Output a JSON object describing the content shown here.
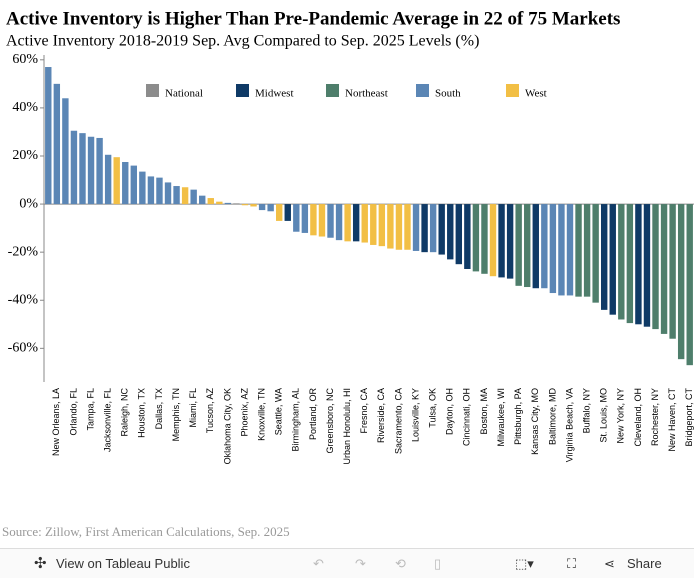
{
  "chart_data": {
    "type": "bar",
    "title": "Active Inventory is Higher Than Pre-Pandemic Average in 22 of 75 Markets",
    "subtitle": "Active Inventory 2018-2019 Sep. Avg Compared to Sep. 2025 Levels (%)",
    "source": "Source: Zillow, First American Calculations, Sep. 2025",
    "categories": [
      null,
      "New Orleans, LA",
      null,
      "Orlando, FL",
      null,
      "Tampa, FL",
      null,
      "Jacksonville, FL",
      null,
      "Raleigh, NC",
      null,
      "Houston, TX",
      null,
      "Dallas, TX",
      null,
      "Memphis, TN",
      null,
      "Miami, FL",
      null,
      "Tucson, AZ",
      null,
      "Oklahoma City, OK",
      null,
      "Phoenix, AZ",
      null,
      "Knoxville, TN",
      null,
      "Seattle, WA",
      null,
      "Birmingham, AL",
      null,
      "Portland, OR",
      null,
      "Greensboro, NC",
      null,
      "Urban Honolulu, HI",
      null,
      "Fresno, CA",
      null,
      "Riverside, CA",
      null,
      "Sacramento, CA",
      null,
      "Louisville, KY",
      null,
      "Tulsa, OK",
      null,
      "Dayton, OH",
      null,
      "Cincinnati, OH",
      null,
      "Boston, MA",
      null,
      "Milwaukee, WI",
      null,
      "Pittsburgh, PA",
      null,
      "Kansas City, MO",
      null,
      "Baltimore, MD",
      null,
      "Virginia Beach, VA",
      null,
      "Buffalo, NY",
      null,
      "St. Louis, MO",
      null,
      "New York, NY",
      null,
      "Cleveland, OH",
      null,
      "Rochester, NY",
      null,
      "New Haven, CT",
      null,
      "Bridgeport, CT"
    ],
    "series": [
      {
        "name": "National",
        "color": "#8c8c8c",
        "values": [
          null,
          null,
          null,
          null,
          null,
          null,
          null,
          null,
          null,
          null,
          null,
          null,
          null,
          null,
          null,
          null,
          null,
          null,
          null,
          null,
          null,
          null,
          0.3,
          null,
          null,
          null,
          null,
          null,
          null,
          null,
          null,
          null,
          null,
          null,
          null,
          null,
          null,
          null,
          null,
          null,
          null,
          null,
          null,
          null,
          null,
          null,
          null,
          null,
          null,
          null,
          null,
          null,
          null,
          null,
          null,
          null,
          null,
          null,
          null,
          null,
          null,
          null,
          null,
          null,
          null,
          null,
          null,
          null,
          null,
          null,
          null,
          null,
          null,
          null,
          null,
          null
        ]
      },
      {
        "name": "Midwest",
        "color": "#0f3a66",
        "values": [
          null,
          null,
          null,
          null,
          null,
          null,
          null,
          null,
          null,
          null,
          null,
          null,
          null,
          null,
          null,
          null,
          null,
          null,
          null,
          null,
          null,
          null,
          null,
          null,
          null,
          null,
          null,
          null,
          -7,
          null,
          null,
          null,
          null,
          null,
          null,
          null,
          -15.5,
          null,
          null,
          null,
          null,
          null,
          null,
          null,
          -20,
          null,
          -21,
          -23,
          -25,
          -27,
          null,
          null,
          null,
          -30.5,
          -31,
          null,
          null,
          -35,
          null,
          null,
          null,
          null,
          null,
          null,
          null,
          -44,
          -46,
          null,
          null,
          -50,
          -51,
          null,
          null,
          null,
          null,
          null
        ]
      },
      {
        "name": "Northeast",
        "color": "#4e7e6b",
        "values": [
          null,
          null,
          null,
          null,
          null,
          null,
          null,
          null,
          null,
          null,
          null,
          null,
          null,
          null,
          null,
          null,
          null,
          null,
          null,
          null,
          null,
          null,
          null,
          null,
          null,
          null,
          null,
          null,
          null,
          null,
          null,
          null,
          null,
          null,
          null,
          null,
          null,
          null,
          null,
          null,
          null,
          null,
          null,
          null,
          null,
          null,
          null,
          null,
          null,
          null,
          -28,
          -29,
          null,
          null,
          null,
          -34,
          -34.5,
          null,
          null,
          null,
          null,
          null,
          -38.5,
          -38.5,
          -41,
          null,
          null,
          -48,
          -49.5,
          null,
          null,
          -52,
          -54,
          -56,
          -64.5,
          -67
        ]
      },
      {
        "name": "South",
        "color": "#5b86b5",
        "values": [
          57,
          50,
          44,
          30.5,
          29.5,
          28,
          27.5,
          20.5,
          null,
          17.5,
          16,
          13.5,
          11.5,
          11,
          9,
          7.5,
          null,
          6,
          3.5,
          null,
          null,
          0.5,
          null,
          null,
          null,
          -2.5,
          -3,
          null,
          null,
          -11.5,
          -12,
          null,
          null,
          -14,
          -15,
          null,
          null,
          null,
          null,
          null,
          null,
          null,
          null,
          -19.5,
          null,
          -20,
          null,
          null,
          null,
          null,
          null,
          null,
          null,
          null,
          null,
          null,
          null,
          null,
          -35,
          -37,
          -38,
          -38,
          null,
          null,
          null,
          null,
          null,
          null,
          null,
          null,
          null,
          null,
          null,
          null,
          null,
          null
        ]
      },
      {
        "name": "West",
        "color": "#f2bf45",
        "values": [
          null,
          null,
          null,
          null,
          null,
          null,
          null,
          null,
          19.5,
          null,
          null,
          null,
          null,
          null,
          null,
          null,
          7,
          null,
          null,
          2.5,
          1,
          null,
          null,
          -0.5,
          -1,
          null,
          null,
          -7,
          null,
          null,
          null,
          -13,
          -13.5,
          null,
          null,
          -15.5,
          null,
          -16,
          -17,
          -17.5,
          -18.5,
          -19,
          -19,
          null,
          null,
          null,
          null,
          null,
          null,
          null,
          null,
          null,
          -30,
          null,
          null,
          null,
          null,
          null,
          null,
          null,
          null,
          null,
          null,
          null,
          null,
          null,
          null,
          null,
          null,
          null,
          null,
          null,
          null,
          null,
          null,
          null
        ]
      }
    ],
    "ylim": [
      -74,
      62
    ],
    "yticks": [
      {
        "value": 60,
        "label": "60%"
      },
      {
        "value": 40,
        "label": "40%"
      },
      {
        "value": 20,
        "label": "20%"
      },
      {
        "value": 0,
        "label": "0%"
      },
      {
        "value": -20,
        "label": "-20%"
      },
      {
        "value": -40,
        "label": "-40%"
      },
      {
        "value": -60,
        "label": "-60%"
      }
    ]
  },
  "toolbar": {
    "view": "View on Tableau Public",
    "share": "Share"
  }
}
